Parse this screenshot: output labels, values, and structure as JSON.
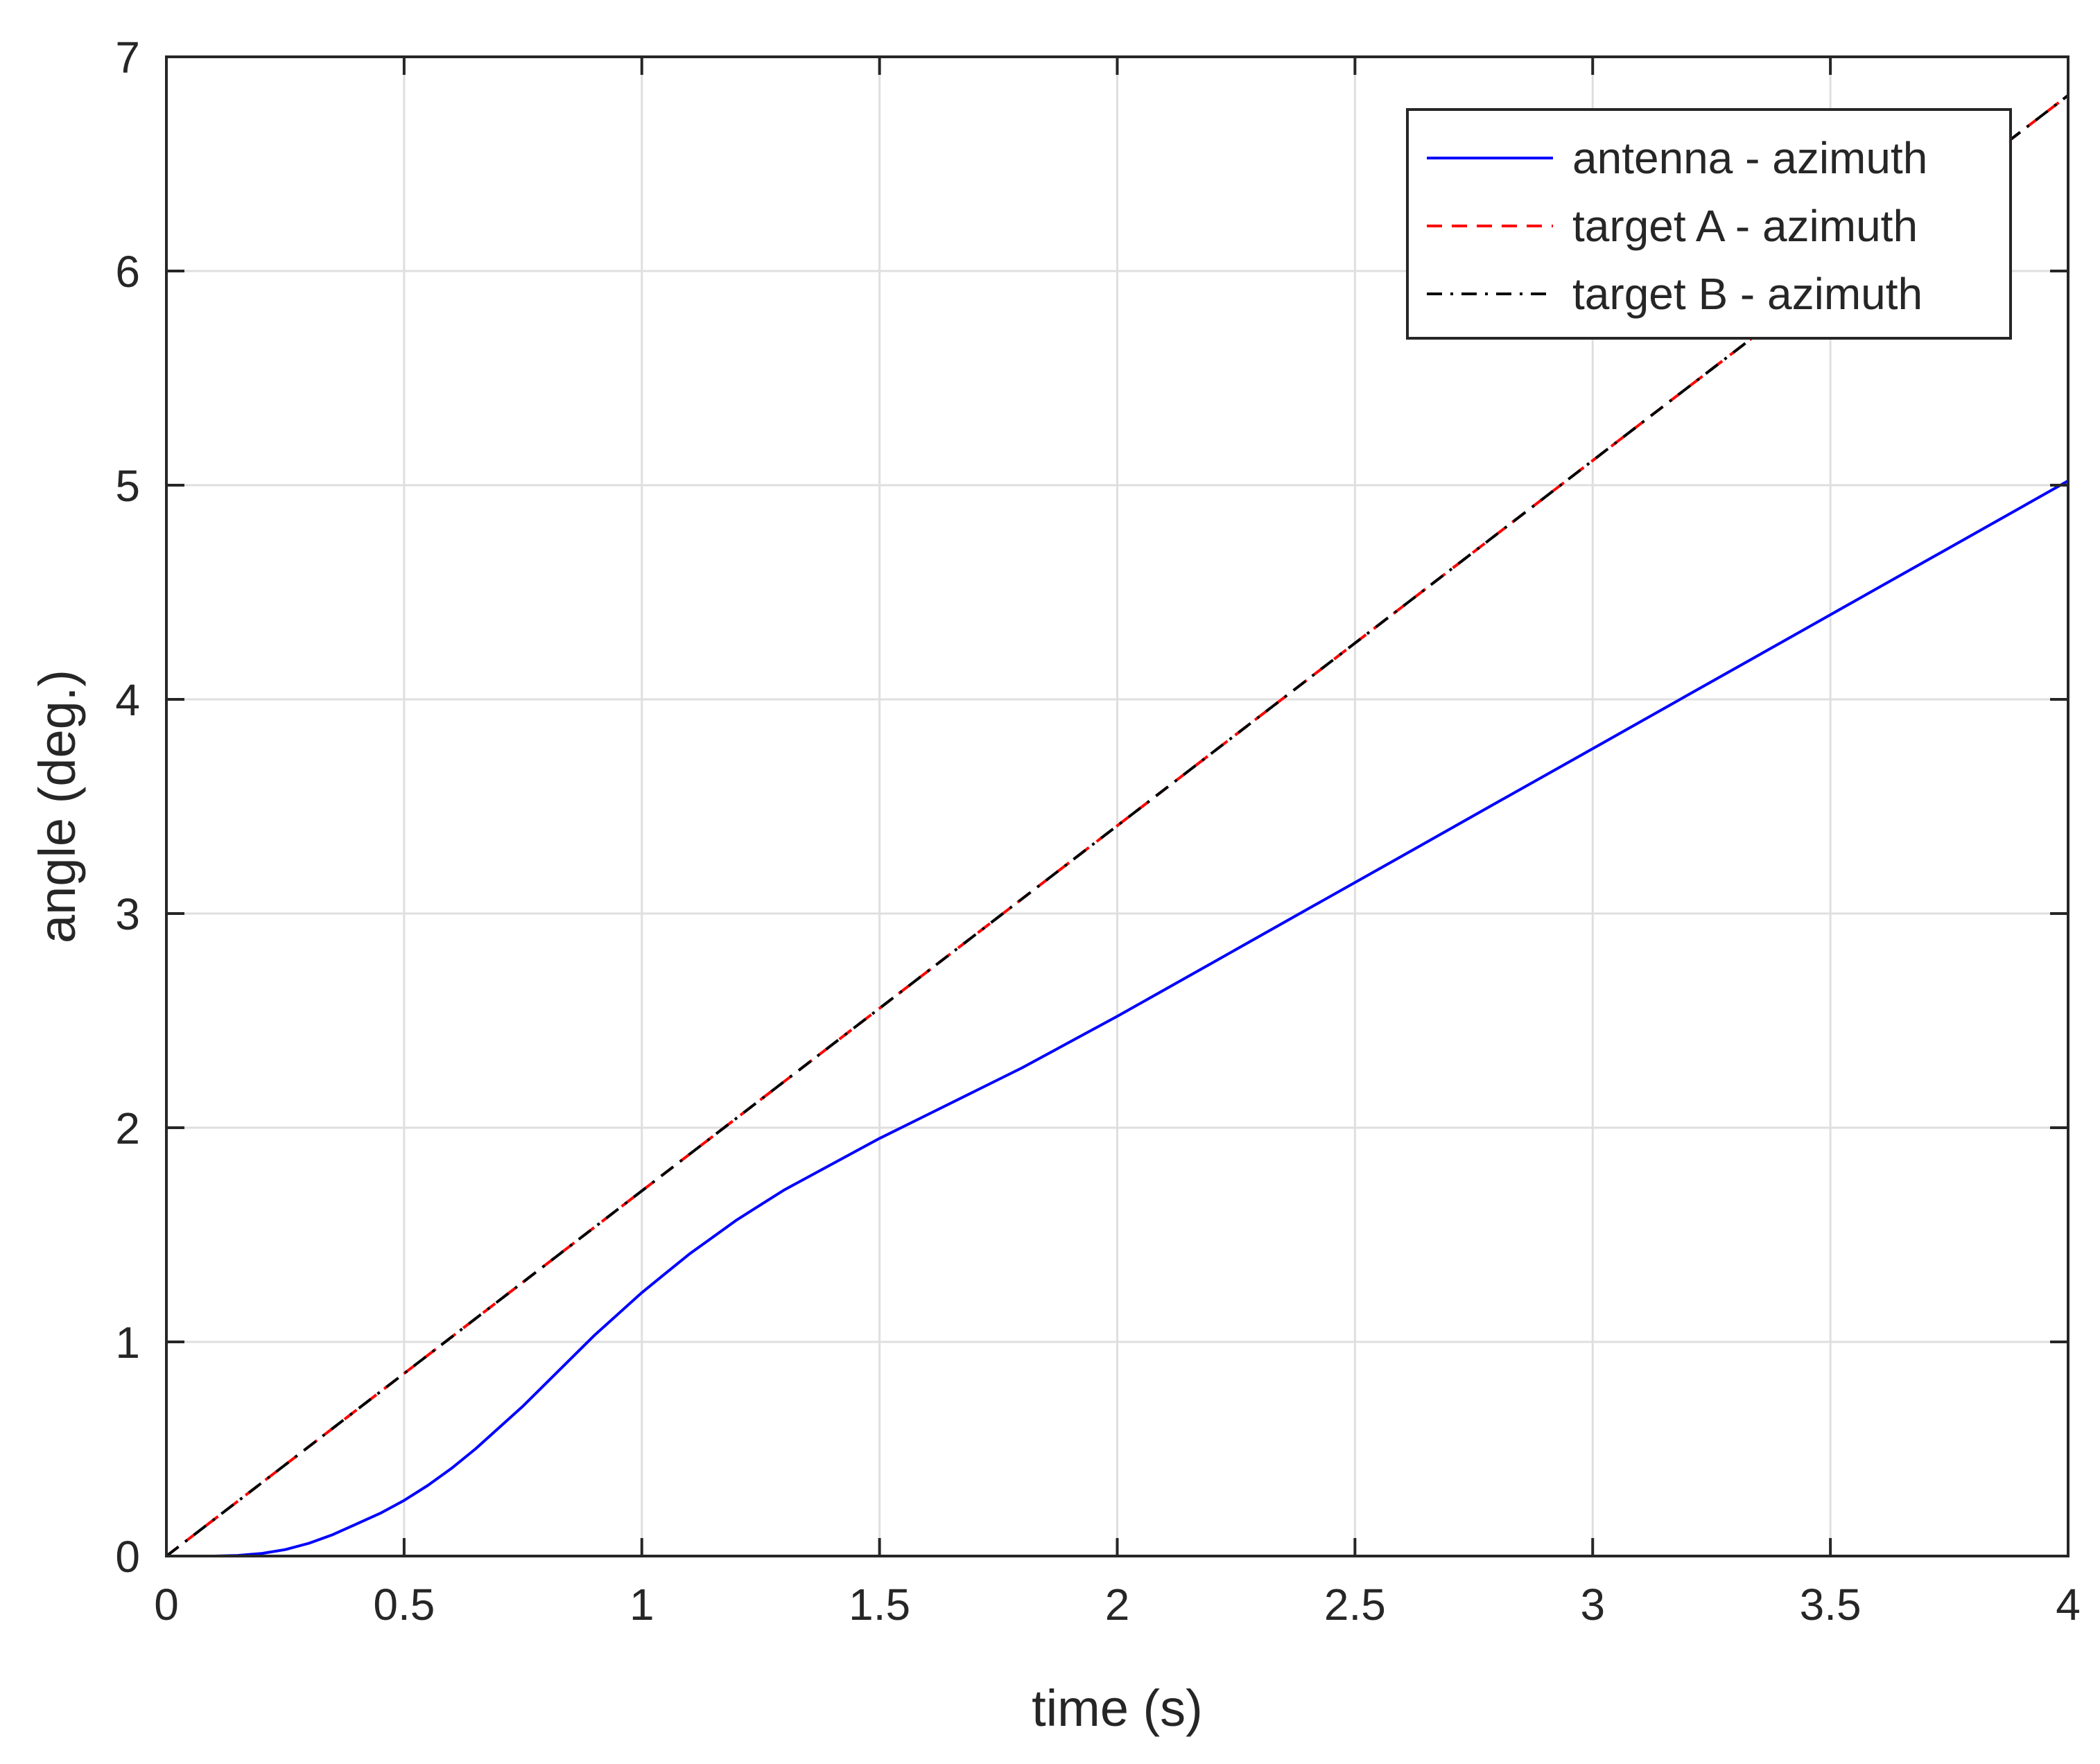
{
  "chart_data": {
    "type": "line",
    "title": "",
    "xlabel": "time (s)",
    "ylabel": "angle (deg.)",
    "xlim": [
      0,
      4
    ],
    "ylim": [
      0,
      7
    ],
    "xticks": [
      0,
      0.5,
      1,
      1.5,
      2,
      2.5,
      3,
      3.5,
      4
    ],
    "xtick_labels": [
      "0",
      "0.5",
      "1",
      "1.5",
      "2",
      "2.5",
      "3",
      "3.5",
      "4"
    ],
    "yticks": [
      0,
      1,
      2,
      3,
      4,
      5,
      6,
      7
    ],
    "ytick_labels": [
      "0",
      "1",
      "2",
      "3",
      "4",
      "5",
      "6",
      "7"
    ],
    "grid": true,
    "box": true,
    "legend_position": "top-right",
    "series": [
      {
        "name": "antenna - azimuth",
        "color": "#0000ff",
        "style": "solid",
        "x": [
          0,
          0.1,
          0.15,
          0.2,
          0.25,
          0.3,
          0.35,
          0.4,
          0.45,
          0.5,
          0.55,
          0.6,
          0.65,
          0.7,
          0.75,
          0.8,
          0.85,
          0.9,
          0.95,
          1.0,
          1.05,
          1.1,
          1.15,
          1.2,
          1.25,
          1.3,
          1.4,
          1.5,
          1.6,
          1.7,
          1.8,
          1.9,
          2.0,
          2.2,
          2.4,
          2.6,
          2.8,
          3.0,
          3.2,
          3.4,
          3.6,
          3.8,
          4.0
        ],
        "y": [
          0,
          0.0,
          0.003,
          0.012,
          0.03,
          0.06,
          0.1,
          0.15,
          0.2,
          0.26,
          0.33,
          0.41,
          0.5,
          0.6,
          0.7,
          0.81,
          0.92,
          1.03,
          1.13,
          1.23,
          1.32,
          1.41,
          1.49,
          1.57,
          1.64,
          1.71,
          1.83,
          1.95,
          2.06,
          2.17,
          2.28,
          2.4,
          2.52,
          2.77,
          3.02,
          3.27,
          3.52,
          3.77,
          4.02,
          4.27,
          4.52,
          4.77,
          5.02
        ]
      },
      {
        "name": "target A - azimuth",
        "color": "#ff0000",
        "style": "dashed",
        "x": [
          0,
          4
        ],
        "y": [
          0,
          6.82
        ]
      },
      {
        "name": "target B - azimuth",
        "color": "#000000",
        "style": "dashdot",
        "x": [
          0,
          4
        ],
        "y": [
          0,
          6.82
        ]
      }
    ]
  }
}
